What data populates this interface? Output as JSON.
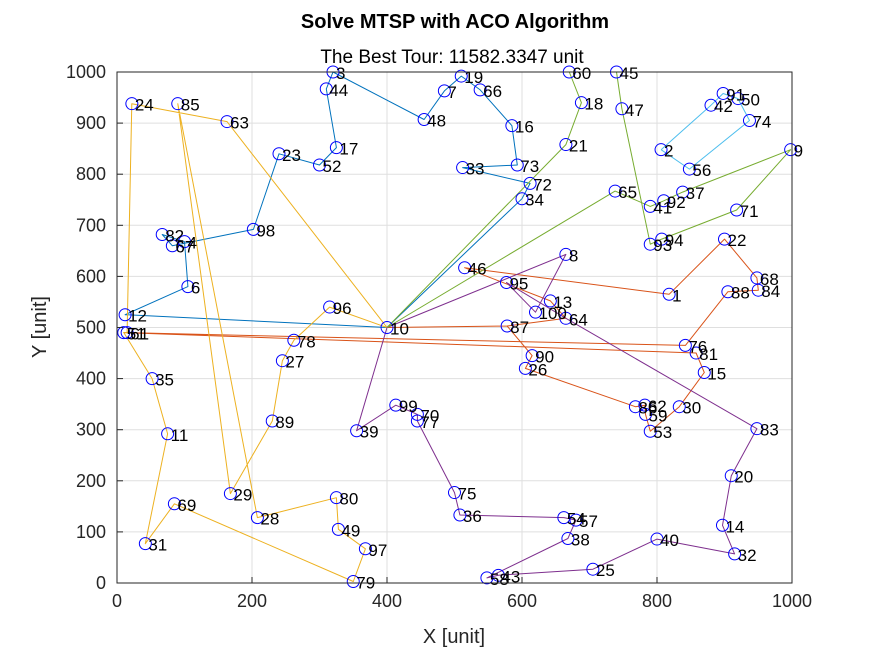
{
  "chart_data": {
    "type": "scatter",
    "title": "Solve MTSP with ACO Algorithm",
    "subtitle": "The Best Tour: 11582.3347 unit",
    "xlabel": "X [unit]",
    "ylabel": "Y [unit]",
    "xlim": [
      0,
      1000
    ],
    "ylim": [
      0,
      1000
    ],
    "xticks": [
      0,
      200,
      400,
      600,
      800,
      1000
    ],
    "yticks": [
      0,
      100,
      200,
      300,
      400,
      500,
      600,
      700,
      800,
      900,
      1000
    ],
    "grid": true,
    "depot": {
      "id": 10,
      "x": 400,
      "y": 500
    },
    "marker_color": "#0000ff",
    "points": [
      {
        "id": 1,
        "x": 818,
        "y": 565
      },
      {
        "id": 2,
        "x": 806,
        "y": 848
      },
      {
        "id": 3,
        "x": 320,
        "y": 1000
      },
      {
        "id": 4,
        "x": 100,
        "y": 668
      },
      {
        "id": 6,
        "x": 105,
        "y": 580
      },
      {
        "id": 7,
        "x": 485,
        "y": 963
      },
      {
        "id": 8,
        "x": 665,
        "y": 643
      },
      {
        "id": 9,
        "x": 998,
        "y": 848
      },
      {
        "id": 10,
        "x": 400,
        "y": 500
      },
      {
        "id": 11,
        "x": 75,
        "y": 292
      },
      {
        "id": 12,
        "x": 12,
        "y": 525
      },
      {
        "id": 13,
        "x": 642,
        "y": 552
      },
      {
        "id": 14,
        "x": 897,
        "y": 113
      },
      {
        "id": 15,
        "x": 870,
        "y": 412
      },
      {
        "id": 16,
        "x": 585,
        "y": 895
      },
      {
        "id": 17,
        "x": 325,
        "y": 852
      },
      {
        "id": 18,
        "x": 688,
        "y": 940
      },
      {
        "id": 19,
        "x": 510,
        "y": 992
      },
      {
        "id": 20,
        "x": 910,
        "y": 210
      },
      {
        "id": 21,
        "x": 665,
        "y": 858
      },
      {
        "id": 22,
        "x": 900,
        "y": 673
      },
      {
        "id": 23,
        "x": 240,
        "y": 840
      },
      {
        "id": 24,
        "x": 22,
        "y": 938
      },
      {
        "id": 25,
        "x": 705,
        "y": 27
      },
      {
        "id": 26,
        "x": 605,
        "y": 420
      },
      {
        "id": 27,
        "x": 245,
        "y": 435
      },
      {
        "id": 28,
        "x": 208,
        "y": 128
      },
      {
        "id": 29,
        "x": 168,
        "y": 175
      },
      {
        "id": 30,
        "x": 833,
        "y": 345
      },
      {
        "id": 31,
        "x": 42,
        "y": 77
      },
      {
        "id": 32,
        "x": 915,
        "y": 57
      },
      {
        "id": 33,
        "x": 512,
        "y": 813
      },
      {
        "id": 34,
        "x": 600,
        "y": 752
      },
      {
        "id": 35,
        "x": 52,
        "y": 400
      },
      {
        "id": 36,
        "x": 508,
        "y": 133
      },
      {
        "id": 37,
        "x": 838,
        "y": 765
      },
      {
        "id": 38,
        "x": 668,
        "y": 87
      },
      {
        "id": 39,
        "x": 355,
        "y": 298
      },
      {
        "id": 40,
        "x": 800,
        "y": 86
      },
      {
        "id": 41,
        "x": 790,
        "y": 737
      },
      {
        "id": 42,
        "x": 880,
        "y": 935
      },
      {
        "id": 43,
        "x": 565,
        "y": 15
      },
      {
        "id": 44,
        "x": 310,
        "y": 967
      },
      {
        "id": 45,
        "x": 740,
        "y": 1000
      },
      {
        "id": 46,
        "x": 515,
        "y": 617
      },
      {
        "id": 47,
        "x": 748,
        "y": 928
      },
      {
        "id": 48,
        "x": 455,
        "y": 907
      },
      {
        "id": 49,
        "x": 328,
        "y": 105
      },
      {
        "id": 50,
        "x": 920,
        "y": 948
      },
      {
        "id": 51,
        "x": 10,
        "y": 490
      },
      {
        "id": 52,
        "x": 300,
        "y": 818
      },
      {
        "id": 53,
        "x": 790,
        "y": 297
      },
      {
        "id": 54,
        "x": 662,
        "y": 128
      },
      {
        "id": 56,
        "x": 848,
        "y": 810
      },
      {
        "id": 57,
        "x": 680,
        "y": 123
      },
      {
        "id": 58,
        "x": 548,
        "y": 10
      },
      {
        "id": 59,
        "x": 783,
        "y": 330
      },
      {
        "id": 60,
        "x": 670,
        "y": 1000
      },
      {
        "id": 61,
        "x": 15,
        "y": 490
      },
      {
        "id": 62,
        "x": 782,
        "y": 348
      },
      {
        "id": 63,
        "x": 163,
        "y": 903
      },
      {
        "id": 64,
        "x": 665,
        "y": 518
      },
      {
        "id": 65,
        "x": 738,
        "y": 767
      },
      {
        "id": 66,
        "x": 538,
        "y": 965
      },
      {
        "id": 67,
        "x": 82,
        "y": 660
      },
      {
        "id": 68,
        "x": 948,
        "y": 597
      },
      {
        "id": 69,
        "x": 85,
        "y": 155
      },
      {
        "id": 70,
        "x": 445,
        "y": 330
      },
      {
        "id": 71,
        "x": 918,
        "y": 730
      },
      {
        "id": 72,
        "x": 612,
        "y": 782
      },
      {
        "id": 73,
        "x": 593,
        "y": 818
      },
      {
        "id": 74,
        "x": 937,
        "y": 905
      },
      {
        "id": 75,
        "x": 500,
        "y": 177
      },
      {
        "id": 76,
        "x": 842,
        "y": 465
      },
      {
        "id": 77,
        "x": 445,
        "y": 317
      },
      {
        "id": 78,
        "x": 262,
        "y": 475
      },
      {
        "id": 79,
        "x": 350,
        "y": 3
      },
      {
        "id": 80,
        "x": 325,
        "y": 167
      },
      {
        "id": 81,
        "x": 858,
        "y": 450
      },
      {
        "id": 82,
        "x": 67,
        "y": 682
      },
      {
        "id": 83,
        "x": 948,
        "y": 302
      },
      {
        "id": 84,
        "x": 950,
        "y": 573
      },
      {
        "id": 85,
        "x": 90,
        "y": 938
      },
      {
        "id": 86,
        "x": 768,
        "y": 345
      },
      {
        "id": 87,
        "x": 578,
        "y": 503
      },
      {
        "id": 88,
        "x": 905,
        "y": 570
      },
      {
        "id": 89,
        "x": 230,
        "y": 317
      },
      {
        "id": 90,
        "x": 615,
        "y": 445
      },
      {
        "id": 91,
        "x": 898,
        "y": 958
      },
      {
        "id": 92,
        "x": 810,
        "y": 748
      },
      {
        "id": 93,
        "x": 790,
        "y": 663
      },
      {
        "id": 94,
        "x": 807,
        "y": 673
      },
      {
        "id": 95,
        "x": 577,
        "y": 588
      },
      {
        "id": 96,
        "x": 315,
        "y": 540
      },
      {
        "id": 97,
        "x": 368,
        "y": 67
      },
      {
        "id": 98,
        "x": 202,
        "y": 692
      },
      {
        "id": 99,
        "x": 413,
        "y": 348
      },
      {
        "id": 100,
        "x": 620,
        "y": 530
      }
    ],
    "series": [
      {
        "color": "#0072bd",
        "path": [
          10,
          12,
          6,
          4,
          82,
          67,
          98,
          23,
          52,
          17,
          44,
          3,
          48,
          7,
          19,
          66,
          16,
          73,
          33,
          72,
          34,
          10
        ]
      },
      {
        "color": "#d95319",
        "path": [
          10,
          87,
          64,
          13,
          46,
          1,
          22,
          68,
          84,
          88,
          76,
          51,
          81,
          15,
          30,
          53,
          59,
          62,
          86,
          26,
          90,
          87,
          10
        ]
      },
      {
        "color": "#edb120",
        "path": [
          10,
          96,
          78,
          27,
          89,
          29,
          85,
          28,
          80,
          49,
          97,
          79,
          69,
          31,
          11,
          35,
          51,
          61,
          24,
          63,
          10
        ]
      },
      {
        "color": "#7e2f8e",
        "path": [
          10,
          8,
          100,
          95,
          64,
          83,
          20,
          14,
          32,
          40,
          25,
          43,
          58,
          38,
          57,
          54,
          36,
          75,
          77,
          70,
          99,
          39,
          10
        ]
      },
      {
        "color": "#77ac30",
        "path": [
          10,
          65,
          41,
          92,
          37,
          9,
          71,
          94,
          93,
          47,
          45,
          60,
          18,
          21,
          10
        ]
      },
      {
        "color": "#4dbeee",
        "path": [
          2,
          42,
          91,
          50,
          74,
          56,
          2
        ]
      }
    ]
  }
}
